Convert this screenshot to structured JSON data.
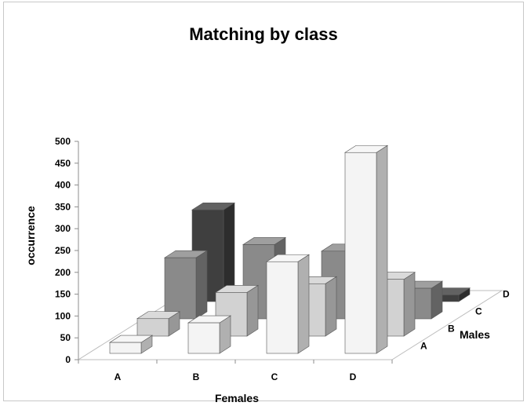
{
  "chart_data": {
    "type": "bar",
    "subtype": "3d-column",
    "title": "Matching by class",
    "xlabel": "Females",
    "ylabel": "occurrence",
    "zlabel": "Males",
    "x_categories": [
      "A",
      "B",
      "C",
      "D"
    ],
    "y_ticks": [
      "0",
      "50",
      "100",
      "150",
      "200",
      "250",
      "300",
      "350",
      "400",
      "450",
      "500"
    ],
    "ylim": [
      0,
      500
    ],
    "grid": false,
    "legend": "none",
    "series": [
      {
        "name": "D",
        "values": [
          25,
          70,
          210,
          460
        ],
        "color": "#f4f4f4"
      },
      {
        "name": "C",
        "values": [
          40,
          100,
          120,
          130
        ],
        "color": "#d2d2d2"
      },
      {
        "name": "B",
        "values": [
          140,
          170,
          155,
          70
        ],
        "color": "#8a8a8a"
      },
      {
        "name": "A",
        "values": [
          210,
          40,
          30,
          15
        ],
        "color": "#3f3f3f"
      }
    ]
  }
}
